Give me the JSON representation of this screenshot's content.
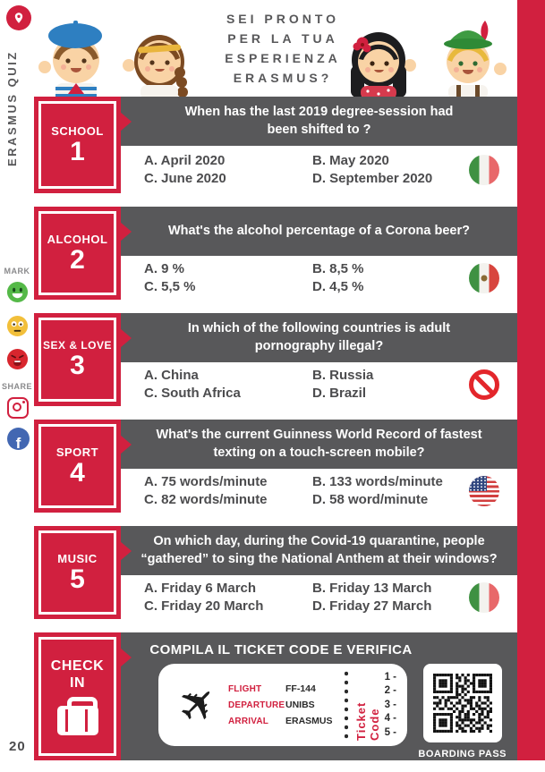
{
  "page": {
    "number": "20"
  },
  "sidebar": {
    "vertical_title": "ERASMUS QUIZ",
    "mark_label": "MARK",
    "share_label": "SHARE",
    "mark_icons": [
      "happy-face",
      "neutral-face",
      "sad-face"
    ],
    "share_icons": [
      "instagram",
      "facebook"
    ],
    "facebook_letter": "f"
  },
  "header": {
    "title_line1": "SEI PRONTO",
    "title_line2": "PER LA TUA",
    "title_line3": "ESPERIENZA",
    "title_line4": "ERASMUS?",
    "characters": [
      "french-boy",
      "greek-girl",
      "spanish-girl",
      "bavarian-boy"
    ]
  },
  "cards": [
    {
      "category": "SCHOOL",
      "number": "1",
      "question": "When has the last 2019 degree-session had been shifted to ?",
      "a": "A. April 2020",
      "b": "B. May 2020",
      "c": "C. June 2020",
      "d": "D. September 2020",
      "icon": "italy-flag"
    },
    {
      "category": "ALCOHOL",
      "number": "2",
      "question": "What's the alcohol percentage of a Corona beer?",
      "a": "A. 9 %",
      "b": "B. 8,5 %",
      "c": "C. 5,5 %",
      "d": "D. 4,5 %",
      "icon": "mexico-flag"
    },
    {
      "category": "SEX & LOVE",
      "number": "3",
      "question": "In which of the following countries is adult pornography illegal?",
      "a": "A. China",
      "b": "B. Russia",
      "c": "C. South Africa",
      "d": "D. Brazil",
      "icon": "prohibition-sign"
    },
    {
      "category": "SPORT",
      "number": "4",
      "question": "What's the current Guinness World Record of fastest texting on a touch-screen mobile?",
      "a": "A. 75 words/minute",
      "b": "B. 133 words/minute",
      "c": "C. 82 words/minute",
      "d": "D. 58 word/minute",
      "icon": "usa-flag"
    },
    {
      "category": "MUSIC",
      "number": "5",
      "question": "On which day, during the Covid-19 quarantine, people “gathered” to sing the National Anthem at their windows?",
      "a": "A. Friday 6 March",
      "b": "B. Friday 13 March",
      "c": "C. Friday 20 March",
      "d": "D. Friday 27 March",
      "icon": "italy-flag"
    }
  ],
  "checkin": {
    "category_line1": "CHECK",
    "category_line2": "IN",
    "title": "COMPILA IL TICKET CODE E VERIFICA",
    "ticket": {
      "flight_label": "FLIGHT",
      "flight_value": "FF-144",
      "departure_label": "DEPARTURE",
      "departure_value": "UNIBS",
      "arrival_label": "ARRIVAL",
      "arrival_value": "ERASMUS",
      "code_label": "Ticket Code",
      "code_lines": [
        "1 -",
        "2 -",
        "3 -",
        "4 -",
        "5 -"
      ]
    },
    "boarding_pass_label": "BOARDING PASS"
  },
  "colors": {
    "accent_red": "#d1203f",
    "band_gray": "#58585a"
  }
}
